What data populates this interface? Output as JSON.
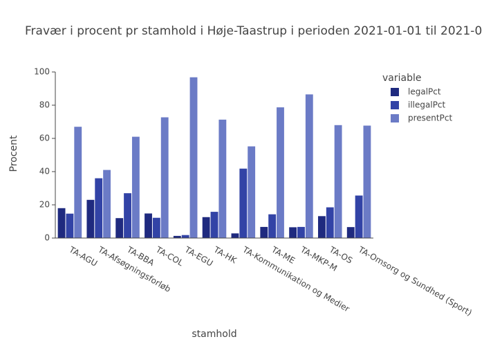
{
  "chart_data": {
    "type": "bar",
    "title": "Fravær i procent pr stamhold i Høje-Taastrup i perioden 2021-01-01 til 2021-0",
    "x_label": "stamhold",
    "y_label": "Procent",
    "legend_title": "variable",
    "categories": [
      "TA-AGU",
      "TA-Afsøgningsforløb",
      "TA-BBA",
      "TA-COL",
      "TA-EGU",
      "TA-HK",
      "TA-Kommunikation og Medier",
      "TA-ME",
      "TA-MKP-M",
      "TA-OS",
      "TA-Omsorg og Sundhed (Sport)"
    ],
    "series": [
      {
        "name": "legalPct",
        "color": "#1f2a7f",
        "values": [
          18,
          23,
          12,
          14.8,
          1.3,
          12.6,
          2.8,
          6.7,
          6.5,
          13.2,
          6.6
        ]
      },
      {
        "name": "illegalPct",
        "color": "#3243a6",
        "values": [
          14.7,
          36,
          27,
          12.2,
          1.8,
          15.8,
          41.8,
          14.3,
          6.7,
          18.5,
          25.6
        ]
      },
      {
        "name": "presentPct",
        "color": "#6b7bc6",
        "values": [
          67,
          41,
          61,
          72.7,
          96.8,
          71.3,
          55.2,
          78.7,
          86.5,
          68,
          67.7
        ]
      }
    ],
    "ylim": [
      0,
      100
    ],
    "yticks": [
      0,
      20,
      40,
      60,
      80,
      100
    ],
    "grid": false,
    "legend": "right"
  }
}
